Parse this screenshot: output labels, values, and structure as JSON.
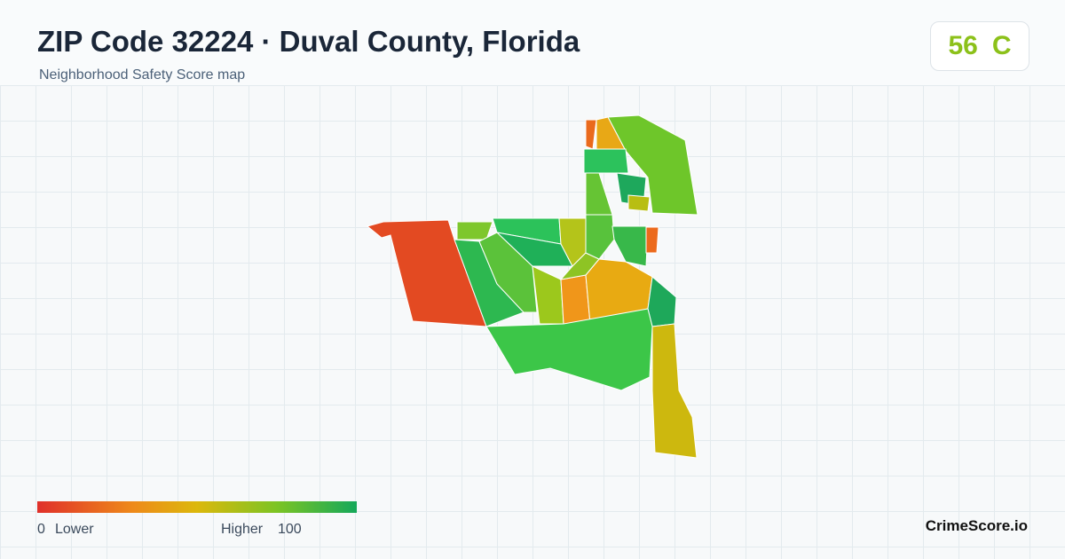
{
  "header": {
    "title": "ZIP Code 32224 · Duval County, Florida",
    "subtitle": "Neighborhood Safety Score map"
  },
  "score": {
    "value": 56,
    "grade": "C"
  },
  "legend": {
    "min": 0,
    "min_label": "Lower",
    "max_label": "Higher",
    "max": 100
  },
  "brand": "CrimeScore.io"
}
